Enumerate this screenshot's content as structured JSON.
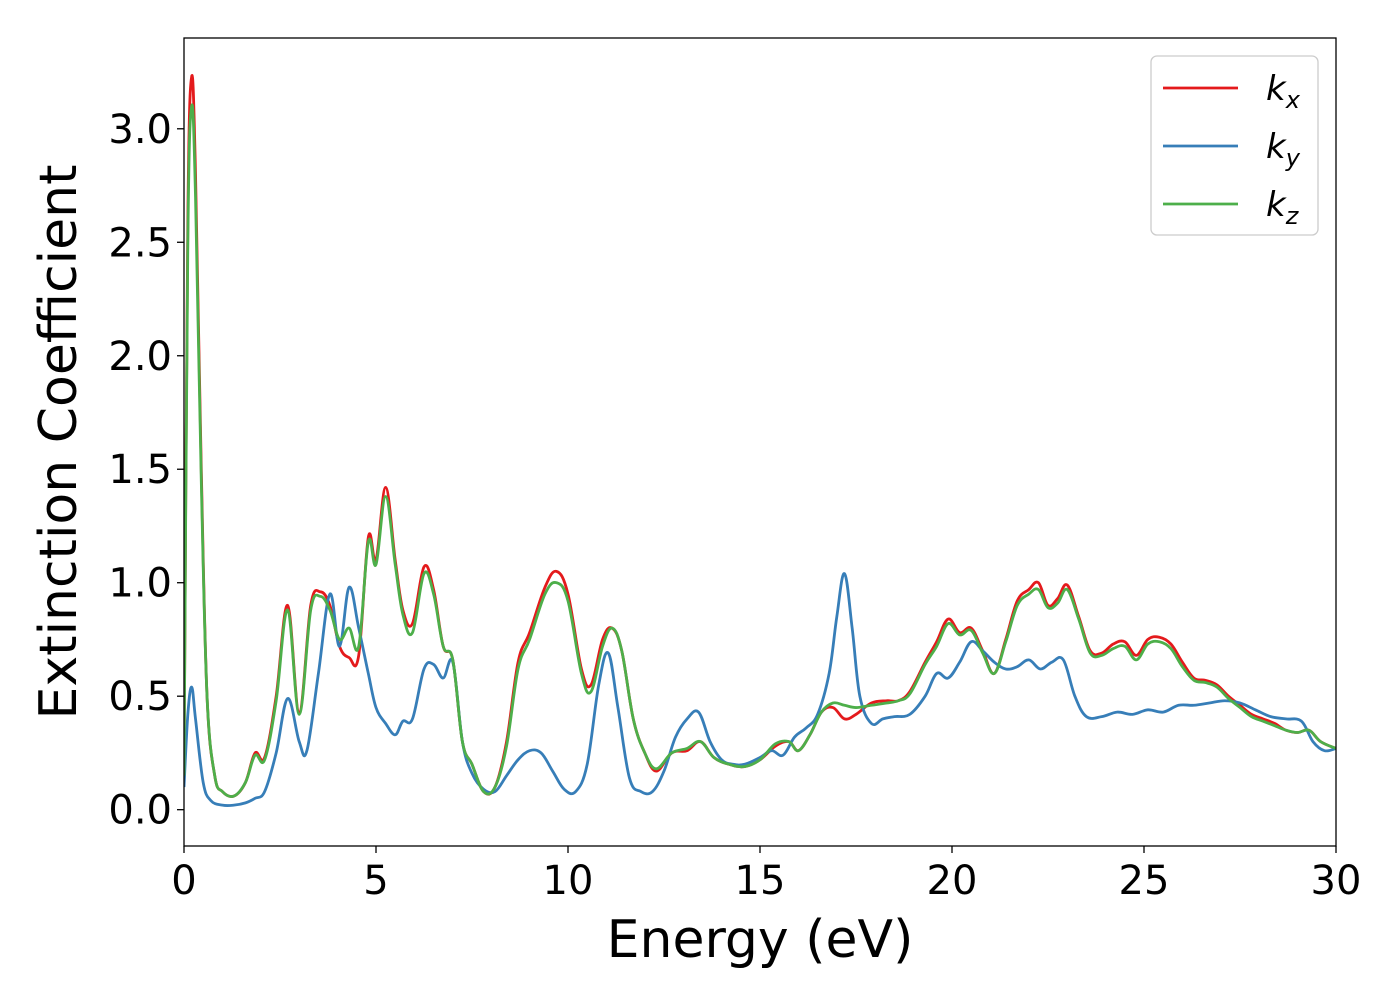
{
  "chart_data": {
    "type": "line",
    "xlabel": "Energy (eV)",
    "ylabel": "Extinction Coefficient",
    "xlim": [
      0,
      30
    ],
    "ylim": [
      -0.16,
      3.4
    ],
    "xticks": [
      "0",
      "5",
      "10",
      "15",
      "20",
      "25",
      "30"
    ],
    "yticks": [
      "0.0",
      "0.5",
      "1.0",
      "1.5",
      "2.0",
      "2.5",
      "3.0"
    ],
    "grid": false,
    "legend_position": "top-right",
    "legend": [
      {
        "base": "k",
        "sub": "x"
      },
      {
        "base": "k",
        "sub": "y"
      },
      {
        "base": "k",
        "sub": "z"
      }
    ],
    "series": [
      {
        "name": "k_x",
        "color": "#e41a1c",
        "x": [
          0,
          0.1,
          0.2,
          0.3,
          0.45,
          0.6,
          0.8,
          1.0,
          1.3,
          1.6,
          1.85,
          2.1,
          2.4,
          2.7,
          3.0,
          3.3,
          3.55,
          3.8,
          4.05,
          4.3,
          4.55,
          4.8,
          5.0,
          5.25,
          5.5,
          5.7,
          5.95,
          6.25,
          6.5,
          6.75,
          7.0,
          7.25,
          7.5,
          7.8,
          8.1,
          8.4,
          8.7,
          9.0,
          9.4,
          9.7,
          10.0,
          10.35,
          10.6,
          10.9,
          11.15,
          11.4,
          11.7,
          12.0,
          12.3,
          12.7,
          13.1,
          13.45,
          13.8,
          14.2,
          14.6,
          15.0,
          15.4,
          15.75,
          16.0,
          16.3,
          16.6,
          16.9,
          17.2,
          17.5,
          17.9,
          18.3,
          18.6,
          18.9,
          19.3,
          19.6,
          19.9,
          20.2,
          20.5,
          20.8,
          21.1,
          21.4,
          21.7,
          22.0,
          22.25,
          22.5,
          22.75,
          23.0,
          23.3,
          23.6,
          23.9,
          24.2,
          24.5,
          24.8,
          25.1,
          25.4,
          25.7,
          26.0,
          26.3,
          26.6,
          26.9,
          27.2,
          27.5,
          27.8,
          28.1,
          28.4,
          28.7,
          29.0,
          29.3,
          29.6,
          30.0
        ],
        "y": [
          0.15,
          2.6,
          3.23,
          2.8,
          1.5,
          0.5,
          0.15,
          0.08,
          0.06,
          0.12,
          0.25,
          0.23,
          0.5,
          0.9,
          0.43,
          0.9,
          0.96,
          0.9,
          0.72,
          0.67,
          0.68,
          1.2,
          1.1,
          1.42,
          1.1,
          0.88,
          0.82,
          1.07,
          0.97,
          0.72,
          0.66,
          0.3,
          0.2,
          0.08,
          0.1,
          0.3,
          0.65,
          0.78,
          0.98,
          1.05,
          0.95,
          0.62,
          0.55,
          0.75,
          0.8,
          0.7,
          0.4,
          0.25,
          0.17,
          0.25,
          0.26,
          0.3,
          0.23,
          0.2,
          0.19,
          0.22,
          0.28,
          0.3,
          0.26,
          0.33,
          0.43,
          0.45,
          0.4,
          0.42,
          0.47,
          0.48,
          0.48,
          0.52,
          0.65,
          0.74,
          0.84,
          0.78,
          0.8,
          0.7,
          0.6,
          0.75,
          0.92,
          0.97,
          1.0,
          0.9,
          0.93,
          0.99,
          0.85,
          0.7,
          0.69,
          0.73,
          0.74,
          0.68,
          0.75,
          0.76,
          0.73,
          0.65,
          0.58,
          0.57,
          0.55,
          0.5,
          0.46,
          0.42,
          0.4,
          0.38,
          0.35,
          0.34,
          0.35,
          0.3,
          0.27
        ]
      },
      {
        "name": "k_y",
        "color": "#377eb8",
        "x": [
          0,
          0.1,
          0.2,
          0.3,
          0.5,
          0.7,
          1.0,
          1.3,
          1.6,
          1.85,
          2.1,
          2.4,
          2.7,
          3.0,
          3.2,
          3.5,
          3.8,
          4.05,
          4.3,
          4.55,
          4.8,
          5.0,
          5.25,
          5.5,
          5.7,
          5.95,
          6.25,
          6.5,
          6.75,
          7.0,
          7.25,
          7.5,
          7.8,
          8.1,
          8.4,
          8.7,
          9.0,
          9.3,
          9.6,
          9.9,
          10.2,
          10.5,
          10.8,
          11.05,
          11.3,
          11.6,
          11.9,
          12.2,
          12.5,
          12.8,
          13.1,
          13.4,
          13.7,
          14.0,
          14.3,
          14.6,
          15.0,
          15.3,
          15.6,
          15.9,
          16.2,
          16.5,
          16.8,
          17.0,
          17.2,
          17.4,
          17.6,
          17.9,
          18.2,
          18.5,
          18.9,
          19.3,
          19.6,
          19.9,
          20.2,
          20.5,
          20.8,
          21.1,
          21.4,
          21.7,
          22.0,
          22.3,
          22.6,
          22.9,
          23.2,
          23.5,
          23.9,
          24.3,
          24.7,
          25.1,
          25.5,
          25.9,
          26.3,
          26.7,
          27.1,
          27.5,
          27.9,
          28.3,
          28.7,
          29.1,
          29.4,
          29.7,
          30.0
        ],
        "y": [
          0.1,
          0.42,
          0.54,
          0.4,
          0.12,
          0.04,
          0.02,
          0.02,
          0.03,
          0.05,
          0.08,
          0.25,
          0.49,
          0.3,
          0.26,
          0.6,
          0.95,
          0.72,
          0.98,
          0.8,
          0.6,
          0.45,
          0.38,
          0.33,
          0.39,
          0.4,
          0.62,
          0.64,
          0.58,
          0.65,
          0.3,
          0.16,
          0.09,
          0.08,
          0.15,
          0.22,
          0.26,
          0.25,
          0.17,
          0.09,
          0.08,
          0.2,
          0.55,
          0.69,
          0.45,
          0.14,
          0.08,
          0.08,
          0.17,
          0.32,
          0.4,
          0.43,
          0.3,
          0.22,
          0.2,
          0.2,
          0.23,
          0.26,
          0.24,
          0.32,
          0.36,
          0.42,
          0.6,
          0.85,
          1.04,
          0.8,
          0.5,
          0.38,
          0.4,
          0.41,
          0.42,
          0.5,
          0.6,
          0.58,
          0.65,
          0.74,
          0.7,
          0.65,
          0.62,
          0.63,
          0.66,
          0.62,
          0.65,
          0.66,
          0.5,
          0.41,
          0.41,
          0.43,
          0.42,
          0.44,
          0.43,
          0.46,
          0.46,
          0.47,
          0.48,
          0.47,
          0.44,
          0.41,
          0.4,
          0.39,
          0.3,
          0.26,
          0.27
        ]
      },
      {
        "name": "k_z",
        "color": "#4daf4a",
        "x": [
          0,
          0.1,
          0.2,
          0.3,
          0.45,
          0.6,
          0.8,
          1.0,
          1.3,
          1.6,
          1.85,
          2.1,
          2.4,
          2.7,
          3.0,
          3.3,
          3.55,
          3.8,
          4.05,
          4.3,
          4.55,
          4.8,
          5.0,
          5.25,
          5.5,
          5.7,
          5.95,
          6.25,
          6.5,
          6.75,
          7.0,
          7.25,
          7.5,
          7.8,
          8.1,
          8.4,
          8.7,
          9.0,
          9.4,
          9.7,
          10.0,
          10.35,
          10.6,
          10.9,
          11.15,
          11.4,
          11.7,
          12.0,
          12.3,
          12.7,
          13.1,
          13.45,
          13.8,
          14.2,
          14.6,
          15.0,
          15.4,
          15.75,
          16.0,
          16.3,
          16.6,
          16.9,
          17.2,
          17.5,
          17.9,
          18.3,
          18.6,
          18.9,
          19.3,
          19.6,
          19.9,
          20.2,
          20.5,
          20.8,
          21.1,
          21.4,
          21.7,
          22.0,
          22.25,
          22.5,
          22.75,
          23.0,
          23.3,
          23.6,
          23.9,
          24.2,
          24.5,
          24.8,
          25.1,
          25.4,
          25.7,
          26.0,
          26.3,
          26.6,
          26.9,
          27.2,
          27.5,
          27.8,
          28.1,
          28.4,
          28.7,
          29.0,
          29.3,
          29.6,
          30.0
        ],
        "y": [
          0.15,
          2.5,
          3.1,
          2.7,
          1.45,
          0.5,
          0.15,
          0.08,
          0.06,
          0.12,
          0.24,
          0.22,
          0.48,
          0.88,
          0.42,
          0.88,
          0.94,
          0.88,
          0.75,
          0.8,
          0.72,
          1.18,
          1.08,
          1.38,
          1.08,
          0.86,
          0.78,
          1.04,
          0.95,
          0.72,
          0.66,
          0.3,
          0.2,
          0.08,
          0.1,
          0.28,
          0.62,
          0.75,
          0.95,
          1.0,
          0.92,
          0.6,
          0.52,
          0.72,
          0.8,
          0.7,
          0.4,
          0.25,
          0.18,
          0.25,
          0.27,
          0.3,
          0.23,
          0.2,
          0.19,
          0.22,
          0.29,
          0.3,
          0.26,
          0.33,
          0.43,
          0.47,
          0.46,
          0.45,
          0.46,
          0.47,
          0.48,
          0.51,
          0.64,
          0.72,
          0.82,
          0.77,
          0.79,
          0.69,
          0.6,
          0.74,
          0.9,
          0.95,
          0.97,
          0.89,
          0.91,
          0.97,
          0.84,
          0.69,
          0.68,
          0.71,
          0.72,
          0.66,
          0.73,
          0.74,
          0.71,
          0.63,
          0.57,
          0.56,
          0.54,
          0.49,
          0.45,
          0.41,
          0.39,
          0.37,
          0.35,
          0.34,
          0.35,
          0.3,
          0.27
        ]
      }
    ]
  }
}
